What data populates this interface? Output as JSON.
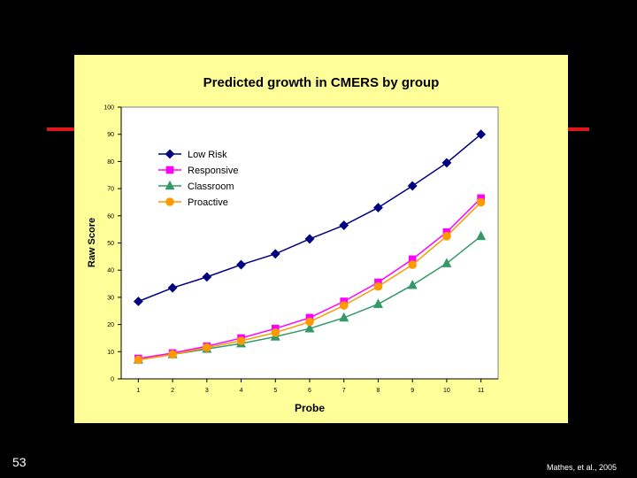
{
  "slide": {
    "number": "53",
    "citation": "Mathes, et al., 2005"
  },
  "colors": {
    "panel_bg": "#ffff99",
    "accent_line": "#e2151b"
  },
  "chart_data": {
    "type": "line",
    "title": "Predicted growth in CMERS by group",
    "xlabel": "Probe",
    "ylabel": "Raw Score",
    "x": [
      1,
      2,
      3,
      4,
      5,
      6,
      7,
      8,
      9,
      10,
      11
    ],
    "ylim": [
      0,
      100
    ],
    "yticks": [
      0,
      10,
      20,
      30,
      40,
      50,
      60,
      70,
      80,
      90,
      100
    ],
    "grid": false,
    "legend": "top-left",
    "series": [
      {
        "name": "Low Risk",
        "color": "#000080",
        "marker": "diamond",
        "values": [
          28.5,
          33.5,
          37.5,
          42,
          46,
          51.5,
          56.5,
          63,
          71,
          79.5,
          90
        ]
      },
      {
        "name": "Responsive",
        "color": "#ff00ff",
        "marker": "square",
        "values": [
          7.5,
          9.5,
          12,
          15,
          18.5,
          22.5,
          28.5,
          35.5,
          44,
          54,
          66.5
        ]
      },
      {
        "name": "Classroom",
        "color": "#339966",
        "marker": "triangle",
        "values": [
          7,
          9,
          11,
          13,
          15.5,
          18.5,
          22.5,
          27.5,
          34.5,
          42.5,
          52.5
        ]
      },
      {
        "name": "Proactive",
        "color": "#ff9900",
        "marker": "circle",
        "values": [
          7,
          9,
          11.5,
          14,
          17,
          21,
          27,
          34,
          42,
          52.5,
          65
        ]
      }
    ]
  }
}
